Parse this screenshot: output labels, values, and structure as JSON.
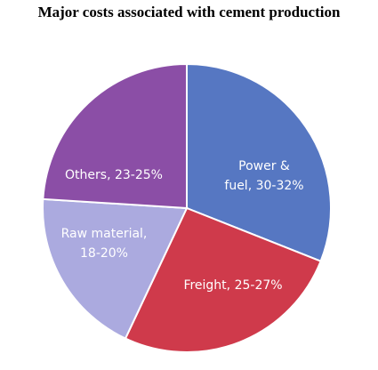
{
  "chart_data": {
    "type": "pie",
    "title": "Major costs associated with cement production",
    "legend": "none",
    "slices": [
      {
        "label_lines": [
          "Power &",
          "fuel, 30-32%"
        ],
        "value": 31,
        "color": "#5677c2"
      },
      {
        "label_lines": [
          "Freight, 25-27%"
        ],
        "value": 26,
        "color": "#cf3a4b"
      },
      {
        "label_lines": [
          "Raw material,",
          "18-20%"
        ],
        "value": 19,
        "color": "#abaadf"
      },
      {
        "label_lines": [
          "Others, 23-25%"
        ],
        "value": 24,
        "color": "#8b4ea6"
      }
    ]
  }
}
